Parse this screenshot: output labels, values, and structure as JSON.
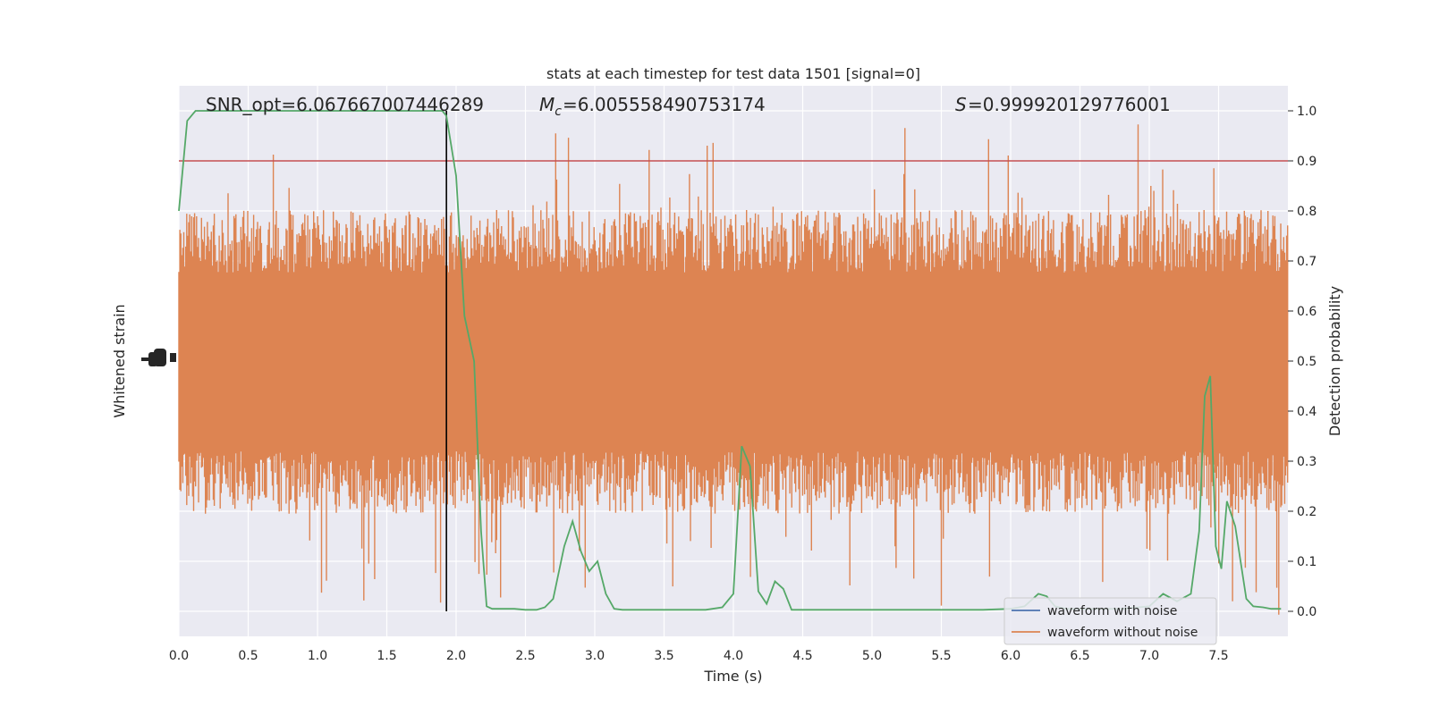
{
  "chart_data": {
    "type": "line",
    "title": "stats at each timestep for test data 1501 [signal=0]",
    "xlabel": "Time (s)",
    "ylabel_left": "Whitened strain",
    "ylabel_right": "Detection probability",
    "xlim": [
      0.0,
      8.0
    ],
    "ylim_right": [
      -0.05,
      1.05
    ],
    "x_ticks": [
      "0.0",
      "0.5",
      "1.0",
      "1.5",
      "2.0",
      "2.5",
      "3.0",
      "3.5",
      "4.0",
      "4.5",
      "5.0",
      "5.5",
      "6.0",
      "6.5",
      "7.0",
      "7.5"
    ],
    "y_ticks_right": [
      "0.0",
      "0.1",
      "0.2",
      "0.3",
      "0.4",
      "0.5",
      "0.6",
      "0.7",
      "0.8",
      "0.9",
      "1.0"
    ],
    "grid": true,
    "annotations": {
      "snr": "SNR_opt=6.067667007446289",
      "mc": "=6.005558490753174",
      "s": "=0.999920129776001"
    },
    "threshold": {
      "y": 0.9,
      "color": "#c44e52"
    },
    "event_marker": {
      "x": 1.93,
      "color": "#000000"
    },
    "legend": {
      "position": "lower-right",
      "entries": [
        {
          "label": "waveform with noise",
          "color": "#4c72b0"
        },
        {
          "label": "waveform without noise",
          "color": "#dd8452"
        }
      ]
    },
    "noise_color": "#dd8452",
    "probability_series": {
      "color": "#55a868",
      "x": [
        0.0,
        0.06,
        0.12,
        0.2,
        0.3,
        0.5,
        0.7,
        0.9,
        1.1,
        1.3,
        1.5,
        1.7,
        1.9,
        1.93,
        2.0,
        2.06,
        2.13,
        2.18,
        2.22,
        2.26,
        2.3,
        2.36,
        2.42,
        2.5,
        2.58,
        2.64,
        2.7,
        2.78,
        2.84,
        2.9,
        2.96,
        3.02,
        3.08,
        3.14,
        3.2,
        3.28,
        3.4,
        3.6,
        3.8,
        3.92,
        4.0,
        4.06,
        4.12,
        4.18,
        4.24,
        4.3,
        4.36,
        4.42,
        4.48,
        4.55,
        4.7,
        4.9,
        5.2,
        5.5,
        5.8,
        6.0,
        6.1,
        6.2,
        6.26,
        6.32,
        6.4,
        6.6,
        6.8,
        7.0,
        7.1,
        7.2,
        7.3,
        7.36,
        7.4,
        7.44,
        7.48,
        7.52,
        7.56,
        7.62,
        7.7,
        7.75,
        7.82,
        7.88,
        7.95
      ],
      "y": [
        0.8,
        0.98,
        1.0,
        1.0,
        1.0,
        1.0,
        1.0,
        1.0,
        1.0,
        1.0,
        1.0,
        1.0,
        1.0,
        0.99,
        0.87,
        0.59,
        0.5,
        0.16,
        0.01,
        0.005,
        0.005,
        0.005,
        0.005,
        0.003,
        0.003,
        0.008,
        0.025,
        0.13,
        0.18,
        0.12,
        0.08,
        0.1,
        0.035,
        0.005,
        0.003,
        0.003,
        0.003,
        0.003,
        0.003,
        0.008,
        0.035,
        0.33,
        0.29,
        0.04,
        0.015,
        0.06,
        0.045,
        0.003,
        0.003,
        0.003,
        0.003,
        0.003,
        0.003,
        0.003,
        0.003,
        0.005,
        0.01,
        0.035,
        0.03,
        0.01,
        0.005,
        0.005,
        0.005,
        0.01,
        0.035,
        0.02,
        0.035,
        0.16,
        0.43,
        0.47,
        0.13,
        0.085,
        0.22,
        0.17,
        0.025,
        0.01,
        0.008,
        0.005,
        0.005
      ]
    }
  }
}
